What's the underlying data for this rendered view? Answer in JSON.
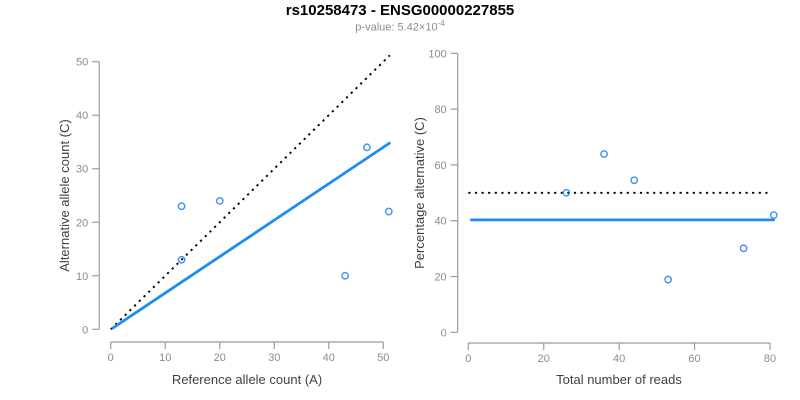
{
  "header": {
    "title": "rs10258473 - ENSG00000227855",
    "subtitle_base": "p-value: 5.42×10",
    "subtitle_exponent": "-4"
  },
  "style": {
    "point_color": "#3c91f5",
    "line_color": "#1e8cf5",
    "dotted_color": "#000000",
    "axis_color": "#9b9b9b",
    "tick_label_color": "#8c8c8c",
    "axis_title_color": "#404040",
    "title_color": "#000000",
    "subtitle_color": "#8c8c8c",
    "background": "#ffffff"
  },
  "chart_data": [
    {
      "type": "scatter",
      "title": "",
      "xlabel": "Reference allele count (A)",
      "ylabel": "Alternative allele count (C)",
      "xlim": [
        0,
        50
      ],
      "ylim": [
        0,
        50
      ],
      "xticks": [
        0,
        10,
        20,
        30,
        40,
        50
      ],
      "yticks": [
        0,
        10,
        20,
        30,
        40,
        50
      ],
      "grid": false,
      "legend": null,
      "marker": "open-circle",
      "points": [
        [
          13,
          23
        ],
        [
          13,
          13
        ],
        [
          20,
          24
        ],
        [
          43,
          10
        ],
        [
          47,
          34
        ],
        [
          51,
          22
        ]
      ],
      "lines": [
        {
          "name": "identity-line",
          "style": "dotted",
          "color": "#000000",
          "x": [
            0,
            51.2
          ],
          "y": [
            0,
            51.2
          ]
        },
        {
          "name": "regression-line",
          "style": "solid",
          "color": "#1e8cf5",
          "x": [
            0.2,
            51.3
          ],
          "y": [
            0.1,
            34.9
          ]
        }
      ]
    },
    {
      "type": "scatter",
      "title": "",
      "xlabel": "Total number of reads",
      "ylabel": "Percentage alternative (C)",
      "xlim": [
        0,
        80
      ],
      "ylim": [
        0,
        100
      ],
      "xticks": [
        0,
        20,
        40,
        60,
        80
      ],
      "yticks": [
        0,
        20,
        40,
        60,
        80,
        100
      ],
      "grid": false,
      "legend": null,
      "marker": "open-circle",
      "points": [
        [
          26,
          50
        ],
        [
          36,
          63.9
        ],
        [
          44,
          54.5
        ],
        [
          53,
          18.9
        ],
        [
          73,
          30.1
        ],
        [
          81,
          42
        ]
      ],
      "lines": [
        {
          "name": "fifty-percent-line",
          "style": "dotted",
          "color": "#000000",
          "x": [
            0,
            79.6
          ],
          "y": [
            50,
            50
          ]
        },
        {
          "name": "mean-percentage-line",
          "style": "solid",
          "color": "#1e8cf5",
          "x": [
            0.5,
            81.3
          ],
          "y": [
            40.3,
            40.3
          ]
        }
      ]
    }
  ]
}
